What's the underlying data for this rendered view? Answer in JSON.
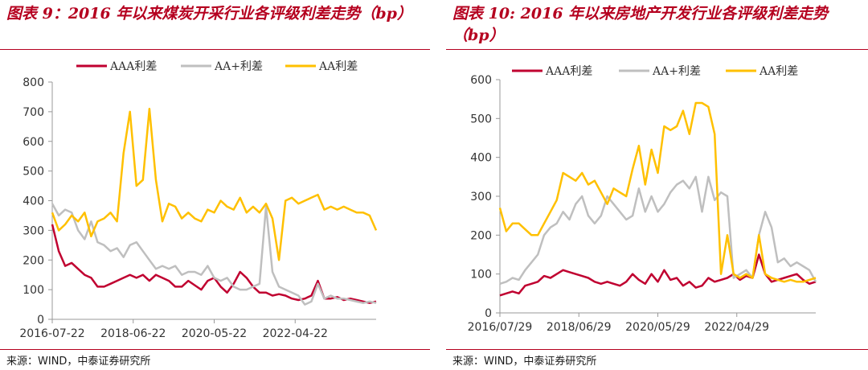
{
  "panels": [
    {
      "title": "图表 9：2016 年以来煤炭开采行业各评级利差走势（bp）",
      "source": "来源：WIND，中泰证券研究所"
    },
    {
      "title": "图表 10: 2016 年以来房地产开发行业各评级利差走势（bp）",
      "source": "来源：WIND，中泰证券研究所"
    }
  ],
  "colors": {
    "title_red": "#b5001f",
    "AAA": "#c00030",
    "AA+": "#bfbfbf",
    "AA": "#ffc000"
  },
  "chart_data": [
    {
      "type": "line",
      "title": "图表 9：2016 年以来煤炭开采行业各评级利差走势（bp）",
      "xlabel": "",
      "ylabel": "",
      "ylim": [
        0,
        800
      ],
      "yticks": [
        0,
        100,
        200,
        300,
        400,
        500,
        600,
        700,
        800
      ],
      "xticks": [
        "2016-07-22",
        "2018-06-22",
        "2020-05-22",
        "2022-04-22"
      ],
      "xtick_positions": [
        0,
        0.25,
        0.5,
        0.75
      ],
      "legend": "top",
      "grid": false,
      "x": [
        0,
        0.02,
        0.04,
        0.06,
        0.08,
        0.1,
        0.12,
        0.14,
        0.16,
        0.18,
        0.2,
        0.22,
        0.24,
        0.26,
        0.28,
        0.3,
        0.32,
        0.34,
        0.36,
        0.38,
        0.4,
        0.42,
        0.44,
        0.46,
        0.48,
        0.5,
        0.52,
        0.54,
        0.56,
        0.58,
        0.6,
        0.62,
        0.64,
        0.66,
        0.68,
        0.7,
        0.72,
        0.74,
        0.76,
        0.78,
        0.8,
        0.82,
        0.84,
        0.86,
        0.88,
        0.9,
        0.92,
        0.94,
        0.96,
        0.98,
        1.0
      ],
      "series": [
        {
          "name": "AAA利差",
          "values": [
            320,
            230,
            180,
            190,
            170,
            150,
            140,
            110,
            110,
            120,
            130,
            140,
            150,
            140,
            150,
            130,
            150,
            140,
            130,
            110,
            110,
            130,
            115,
            100,
            130,
            140,
            110,
            90,
            120,
            160,
            140,
            110,
            90,
            90,
            80,
            85,
            80,
            70,
            65,
            70,
            80,
            130,
            70,
            70,
            75,
            65,
            70,
            65,
            60,
            55,
            60
          ]
        },
        {
          "name": "AA+利差",
          "values": [
            390,
            350,
            370,
            360,
            300,
            270,
            330,
            260,
            250,
            230,
            240,
            210,
            250,
            260,
            230,
            200,
            170,
            180,
            170,
            180,
            150,
            160,
            160,
            150,
            180,
            140,
            130,
            140,
            110,
            100,
            100,
            110,
            120,
            380,
            160,
            110,
            100,
            90,
            80,
            50,
            60,
            120,
            70,
            80,
            70,
            70,
            65,
            60,
            55,
            60,
            55
          ]
        },
        {
          "name": "AA利差",
          "values": [
            360,
            300,
            320,
            350,
            330,
            360,
            280,
            330,
            340,
            360,
            330,
            560,
            700,
            450,
            470,
            710,
            470,
            330,
            390,
            380,
            340,
            360,
            340,
            330,
            370,
            360,
            400,
            380,
            370,
            410,
            360,
            380,
            360,
            390,
            340,
            200,
            400,
            410,
            390,
            400,
            410,
            420,
            370,
            380,
            370,
            380,
            370,
            360,
            360,
            350,
            300
          ]
        }
      ]
    },
    {
      "type": "line",
      "title": "图表 10: 2016 年以来房地产开发行业各评级利差走势（bp）",
      "xlabel": "",
      "ylabel": "",
      "ylim": [
        0,
        600
      ],
      "yticks": [
        0,
        100,
        200,
        300,
        400,
        500,
        600
      ],
      "xticks": [
        "2016/07/29",
        "2018/06/29",
        "2020/05/29",
        "2022/04/29"
      ],
      "xtick_positions": [
        0,
        0.25,
        0.5,
        0.75
      ],
      "legend": "top",
      "grid": false,
      "x": [
        0,
        0.02,
        0.04,
        0.06,
        0.08,
        0.1,
        0.12,
        0.14,
        0.16,
        0.18,
        0.2,
        0.22,
        0.24,
        0.26,
        0.28,
        0.3,
        0.32,
        0.34,
        0.36,
        0.38,
        0.4,
        0.42,
        0.44,
        0.46,
        0.48,
        0.5,
        0.52,
        0.54,
        0.56,
        0.58,
        0.6,
        0.62,
        0.64,
        0.66,
        0.68,
        0.7,
        0.72,
        0.74,
        0.76,
        0.78,
        0.8,
        0.82,
        0.84,
        0.86,
        0.88,
        0.9,
        0.92,
        0.94,
        0.96,
        0.98,
        1.0
      ],
      "series": [
        {
          "name": "AAA利差",
          "values": [
            45,
            50,
            55,
            50,
            70,
            75,
            80,
            95,
            90,
            100,
            110,
            105,
            100,
            95,
            90,
            80,
            75,
            80,
            75,
            70,
            80,
            100,
            85,
            75,
            100,
            80,
            110,
            85,
            90,
            70,
            80,
            65,
            70,
            90,
            80,
            85,
            90,
            100,
            85,
            95,
            90,
            150,
            100,
            80,
            85,
            90,
            95,
            100,
            85,
            75,
            80
          ]
        },
        {
          "name": "AA+利差",
          "values": [
            75,
            80,
            90,
            85,
            110,
            130,
            150,
            200,
            220,
            230,
            260,
            240,
            280,
            300,
            250,
            230,
            250,
            300,
            280,
            260,
            240,
            250,
            320,
            260,
            300,
            260,
            280,
            310,
            330,
            340,
            320,
            350,
            260,
            350,
            290,
            310,
            300,
            90,
            100,
            110,
            90,
            200,
            260,
            220,
            130,
            140,
            120,
            130,
            120,
            110,
            80
          ]
        },
        {
          "name": "AA利差",
          "values": [
            270,
            210,
            230,
            230,
            215,
            200,
            200,
            230,
            260,
            290,
            360,
            350,
            340,
            360,
            330,
            340,
            310,
            280,
            320,
            310,
            300,
            370,
            430,
            330,
            420,
            360,
            480,
            470,
            480,
            520,
            460,
            540,
            540,
            530,
            460,
            100,
            200,
            100,
            90,
            100,
            90,
            200,
            100,
            90,
            85,
            80,
            85,
            80,
            80,
            85,
            90
          ]
        }
      ]
    }
  ]
}
